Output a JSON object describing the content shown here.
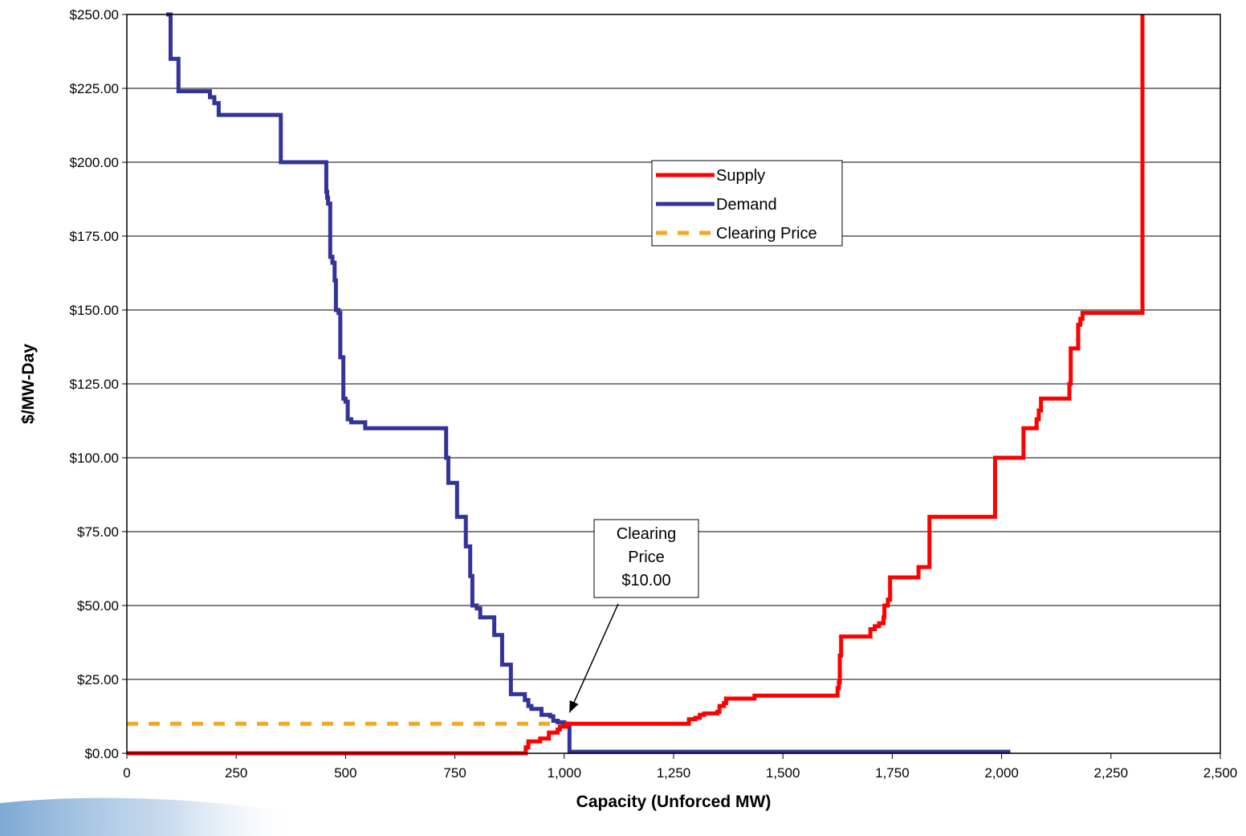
{
  "chart_data": {
    "type": "line",
    "title": "",
    "xlabel": "Capacity (Unforced MW)",
    "ylabel": "$/MW-Day",
    "xlim": [
      0,
      2500
    ],
    "ylim": [
      0,
      250
    ],
    "xticks": [
      0,
      250,
      500,
      750,
      1000,
      1250,
      1500,
      1750,
      2000,
      2250,
      2500
    ],
    "xtick_labels": [
      "0",
      "250",
      "500",
      "750",
      "1,000",
      "1,250",
      "1,500",
      "1,750",
      "2,000",
      "2,250",
      "2,500"
    ],
    "yticks": [
      0,
      25,
      50,
      75,
      100,
      125,
      150,
      175,
      200,
      225,
      250
    ],
    "ytick_labels": [
      "$0.00",
      "$25.00",
      "$50.00",
      "$75.00",
      "$100.00",
      "$125.00",
      "$150.00",
      "$175.00",
      "$200.00",
      "$225.00",
      "$250.00"
    ],
    "grid": "horizontal",
    "legend_position": "upper-middle",
    "series": [
      {
        "name": "Supply",
        "color": "#ff0000",
        "style": "step",
        "x": [
          0,
          910,
          912,
          918,
          940,
          945,
          960,
          965,
          978,
          985,
          990,
          1000,
          1005,
          1015,
          1280,
          1285,
          1300,
          1310,
          1320,
          1340,
          1350,
          1355,
          1365,
          1370,
          1430,
          1435,
          1620,
          1625,
          1628,
          1630,
          1633,
          1690,
          1700,
          1710,
          1720,
          1730,
          1732,
          1740,
          1745,
          1800,
          1810,
          1830,
          1835,
          1980,
          1985,
          2040,
          2050,
          2070,
          2080,
          2085,
          2090,
          2150,
          2155,
          2158,
          2170,
          2175,
          2180,
          2185,
          2320,
          2322
        ],
        "y": [
          0,
          0,
          2,
          4,
          4,
          5,
          5,
          7,
          7,
          8,
          9,
          9,
          10,
          10,
          10,
          11.5,
          12,
          13,
          13.5,
          13.5,
          14,
          16,
          17,
          18.5,
          18.5,
          19.5,
          19.5,
          22,
          24,
          33,
          39.5,
          39.5,
          42,
          43,
          44,
          46,
          50,
          52,
          59.5,
          59.5,
          63,
          63,
          80,
          80,
          100,
          100,
          110,
          110,
          113,
          116,
          120,
          120,
          125,
          137,
          137,
          145,
          147,
          149,
          149,
          250
        ]
      },
      {
        "name": "Demand",
        "color": "#333399",
        "style": "step",
        "x": [
          90,
          98,
          100,
          118,
          180,
          190,
          200,
          210,
          348,
          352,
          455,
          456,
          458,
          460,
          465,
          470,
          475,
          478,
          484,
          488,
          495,
          500,
          505,
          513,
          528,
          545,
          725,
          730,
          735,
          750,
          755,
          768,
          775,
          785,
          790,
          800,
          808,
          818,
          840,
          858,
          878,
          900,
          910,
          918,
          925,
          948,
          968,
          975,
          985,
          1000,
          1010,
          1012,
          2020
        ],
        "y": [
          250,
          250,
          235,
          224,
          224,
          222,
          220,
          216,
          216,
          200,
          200,
          190,
          188,
          186,
          168,
          166,
          160,
          150,
          149,
          134,
          120,
          119,
          113,
          112,
          112,
          110,
          110,
          100,
          91.5,
          91.5,
          80,
          80,
          70,
          60,
          50,
          49,
          46,
          46,
          40,
          30,
          20,
          20,
          18,
          16,
          15,
          13,
          12.5,
          11,
          10.5,
          10,
          10,
          0.5,
          0.5
        ]
      },
      {
        "name": "Clearing Price",
        "color": "#f5a623",
        "style": "dashed",
        "x": [
          0,
          1012
        ],
        "y": [
          10,
          10
        ]
      }
    ],
    "annotation": {
      "lines": [
        "Clearing",
        "Price",
        "$10.00"
      ],
      "points_to": [
        1012,
        10
      ]
    }
  }
}
